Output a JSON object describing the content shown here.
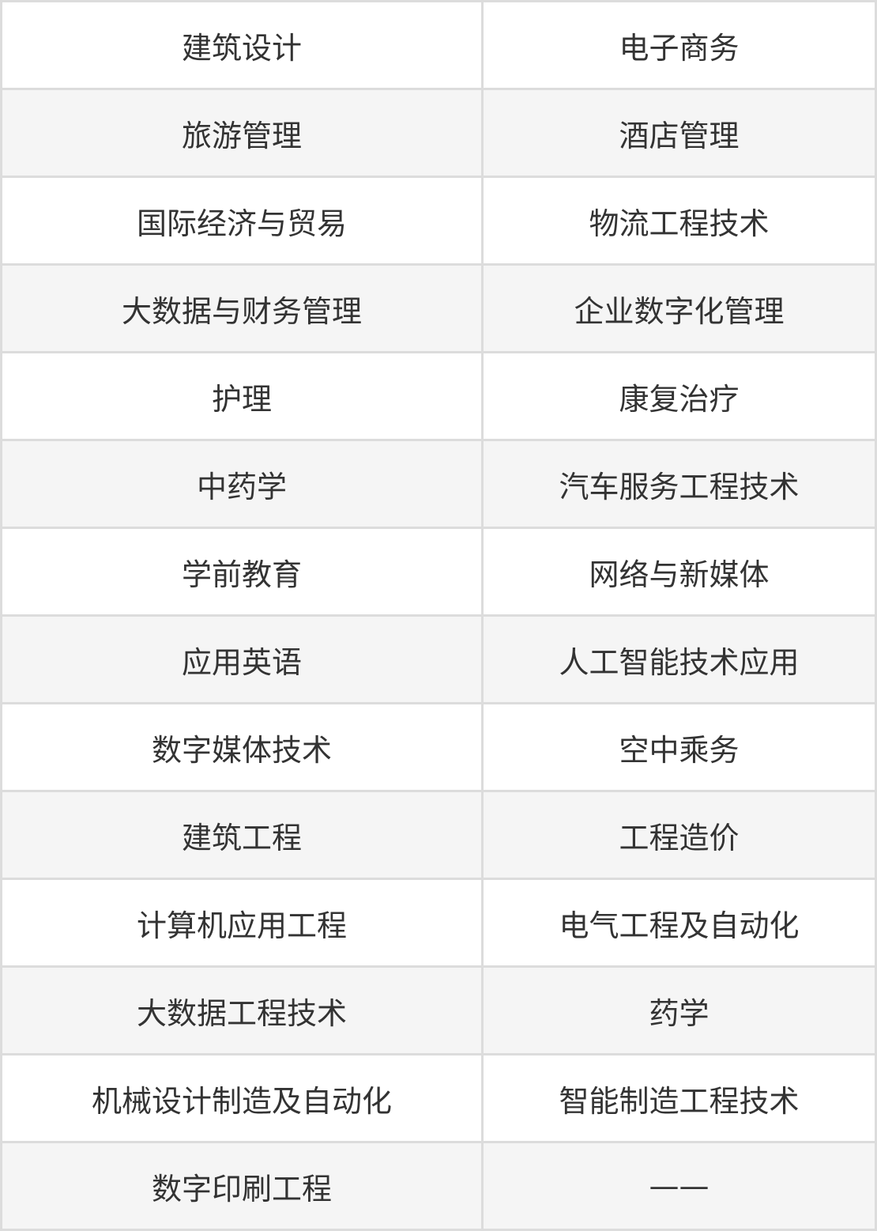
{
  "table": {
    "rows": [
      [
        "建筑设计",
        "电子商务"
      ],
      [
        "旅游管理",
        "酒店管理"
      ],
      [
        "国际经济与贸易",
        "物流工程技术"
      ],
      [
        "大数据与财务管理",
        "企业数字化管理"
      ],
      [
        "护理",
        "康复治疗"
      ],
      [
        "中药学",
        "汽车服务工程技术"
      ],
      [
        "学前教育",
        "网络与新媒体"
      ],
      [
        "应用英语",
        "人工智能技术应用"
      ],
      [
        "数字媒体技术",
        "空中乘务"
      ],
      [
        "建筑工程",
        "工程造价"
      ],
      [
        "计算机应用工程",
        "电气工程及自动化"
      ],
      [
        "大数据工程技术",
        "药学"
      ],
      [
        "机械设计制造及自动化",
        "智能制造工程技术"
      ],
      [
        "数字印刷工程",
        "——"
      ]
    ]
  },
  "colors": {
    "border": "#dcdcdc",
    "stripe": "#f5f5f5",
    "text": "#333333"
  }
}
